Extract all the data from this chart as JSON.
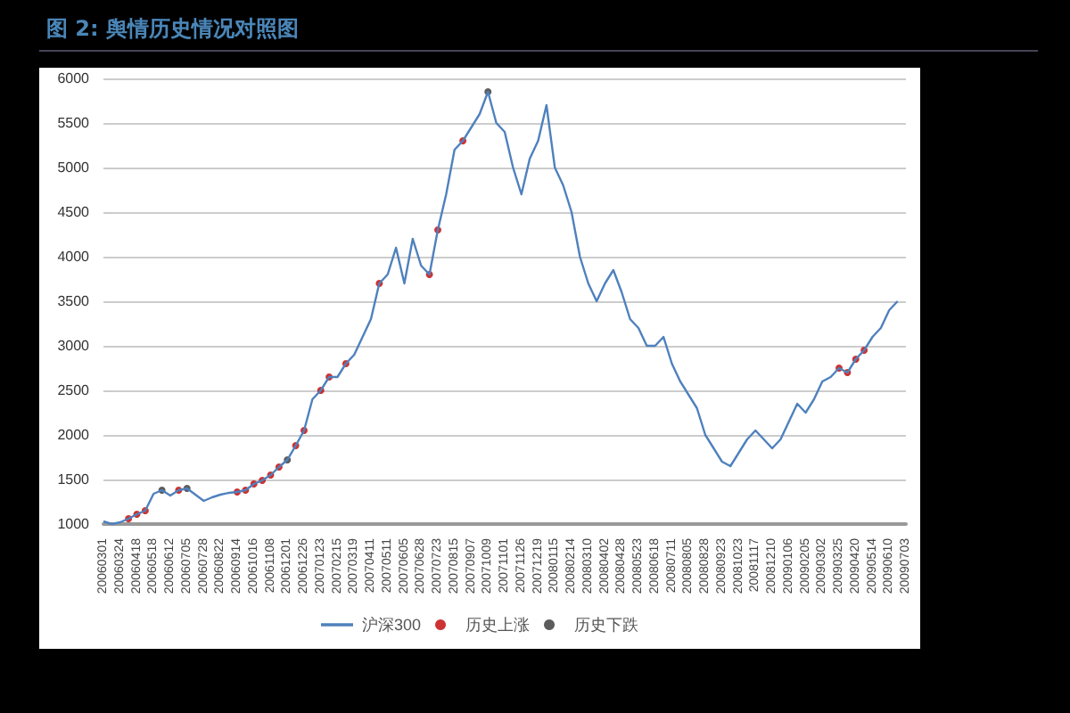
{
  "chart_data": {
    "type": "line",
    "title": "图 2: 舆情历史情况对照图",
    "categories": [
      "20060301",
      null,
      "20060324",
      null,
      "20060418",
      null,
      "20060518",
      null,
      "20060612",
      null,
      "20060705",
      null,
      "20060728",
      null,
      "20060822",
      null,
      "20060914",
      null,
      "20061016",
      null,
      "20061108",
      null,
      "20061201",
      null,
      "20061226",
      null,
      "20070123",
      null,
      "20070215",
      null,
      "20070319",
      null,
      "20070411",
      null,
      "20070511",
      null,
      "20070605",
      null,
      "20070628",
      null,
      "20070723",
      null,
      "20070815",
      null,
      "20070907",
      null,
      "20071009",
      null,
      "20071101",
      null,
      "20071126",
      null,
      "20071219",
      null,
      "20080115",
      null,
      "20080214",
      null,
      "20080310",
      null,
      "20080402",
      null,
      "20080428",
      null,
      "20080523",
      null,
      "20080618",
      null,
      "20080711",
      null,
      "20080805",
      null,
      "20080828",
      null,
      "20080923",
      null,
      "20081023",
      null,
      "20081117",
      null,
      "20081210",
      null,
      "20090106",
      null,
      "20090205",
      null,
      "20090302",
      null,
      "20090325",
      null,
      "20090420",
      null,
      "20090514",
      null,
      "20090610",
      null,
      "20090703"
    ],
    "series": [
      {
        "name": "沪深300",
        "color": "#4f81bd",
        "marker": "none",
        "values": [
          1030,
          1000,
          1020,
          1060,
          1110,
          1150,
          1340,
          1380,
          1320,
          1380,
          1400,
          1330,
          1260,
          1300,
          1330,
          1350,
          1360,
          1380,
          1450,
          1490,
          1550,
          1640,
          1720,
          1880,
          2050,
          2400,
          2500,
          2650,
          2650,
          2800,
          2900,
          3100,
          3300,
          3700,
          3800,
          4100,
          3700,
          4200,
          3900,
          3800,
          4300,
          4700,
          5200,
          5300,
          5450,
          5600,
          5850,
          5500,
          5400,
          5000,
          4700,
          5100,
          5300,
          5700,
          5000,
          4800,
          4500,
          4000,
          3700,
          3500,
          3700,
          3850,
          3600,
          3300,
          3200,
          3000,
          3000,
          3100,
          2800,
          2600,
          2450,
          2300,
          2000,
          1850,
          1700,
          1650,
          1800,
          1950,
          2050,
          1950,
          1850,
          1950,
          2150,
          2350,
          2250,
          2400,
          2600,
          2650,
          2750,
          2700,
          2850,
          2950,
          3100,
          3200,
          3400,
          3500,
          null
        ]
      },
      {
        "name": "历史上涨",
        "type": "scatter",
        "color": "#c00000",
        "marker": "circle",
        "values": [
          null,
          null,
          null,
          1060,
          1110,
          1150,
          null,
          null,
          null,
          1380,
          null,
          null,
          null,
          null,
          null,
          null,
          1360,
          1380,
          1450,
          1490,
          1550,
          1640,
          null,
          1880,
          2050,
          null,
          2500,
          2650,
          null,
          2800,
          null,
          null,
          null,
          3700,
          null,
          null,
          null,
          null,
          null,
          3800,
          4300,
          null,
          null,
          5300,
          null,
          null,
          null,
          null,
          null,
          null,
          null,
          null,
          null,
          null,
          null,
          null,
          null,
          null,
          null,
          null,
          null,
          null,
          null,
          null,
          null,
          null,
          null,
          null,
          null,
          null,
          null,
          null,
          null,
          null,
          null,
          null,
          null,
          null,
          null,
          null,
          null,
          null,
          null,
          null,
          null,
          null,
          null,
          null,
          2750,
          2700,
          2850,
          2950,
          null,
          null,
          null,
          null,
          null
        ]
      },
      {
        "name": "历史下跌",
        "type": "scatter",
        "color": "#333333",
        "marker": "circle",
        "values": [
          null,
          null,
          null,
          null,
          null,
          null,
          null,
          1380,
          null,
          null,
          1400,
          null,
          null,
          null,
          null,
          null,
          null,
          null,
          null,
          null,
          null,
          null,
          1720,
          null,
          null,
          null,
          null,
          null,
          null,
          null,
          null,
          null,
          null,
          null,
          null,
          null,
          null,
          null,
          null,
          null,
          null,
          null,
          null,
          null,
          null,
          null,
          5850,
          null,
          null,
          null,
          null,
          null,
          null,
          null,
          null,
          null,
          null,
          null,
          null,
          null,
          null,
          null,
          null,
          null,
          null,
          null,
          null,
          null,
          null,
          null,
          null,
          null,
          null,
          null,
          null,
          null,
          null,
          null,
          null,
          null,
          null,
          null,
          null,
          null,
          null,
          null,
          null,
          null,
          null,
          null,
          null,
          null,
          null,
          null,
          null,
          null,
          null
        ]
      }
    ],
    "ylim": [
      1000,
      6000
    ],
    "yticks": [
      1000,
      1500,
      2000,
      2500,
      3000,
      3500,
      4000,
      4500,
      5000,
      5500,
      6000
    ],
    "grid": "y",
    "legend": "bottom"
  }
}
